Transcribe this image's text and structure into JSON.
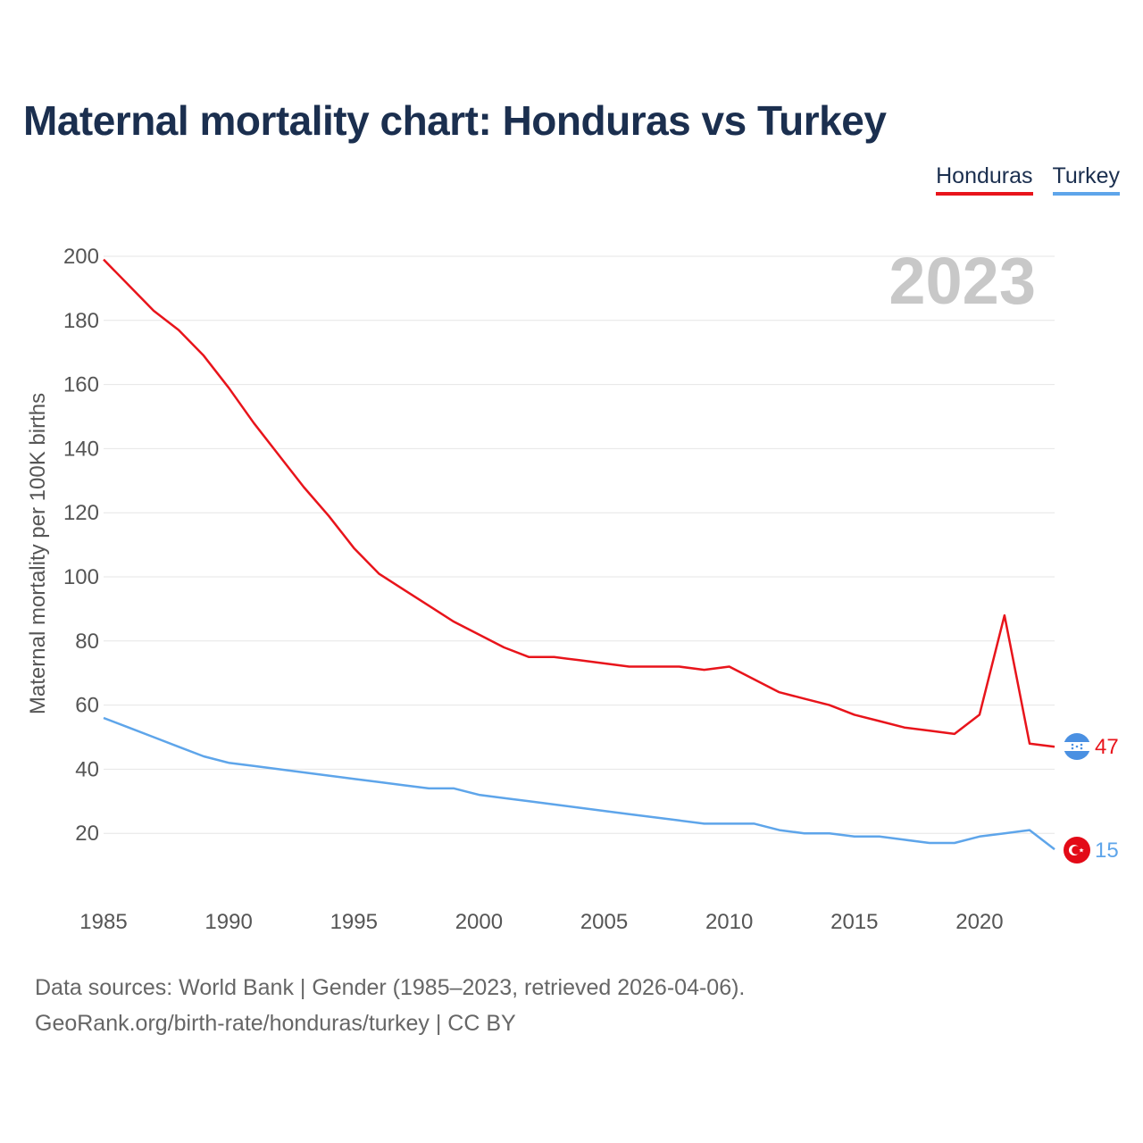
{
  "title": "Maternal mortality chart: Honduras vs Turkey",
  "legend": {
    "honduras": "Honduras",
    "turkey": "Turkey"
  },
  "footer": {
    "line1": "Data sources: World Bank | Gender (1985–2023, retrieved 2026-04-06).",
    "line2": "GeoRank.org/birth-rate/honduras/turkey | CC BY"
  },
  "colors": {
    "honduras": "#e8141b",
    "turkey": "#5ea5ea",
    "title": "#1b2f4f",
    "grid": "#e6e6e6",
    "year_watermark": "#c8c8c8"
  },
  "chart_data": {
    "type": "line",
    "title": "Maternal mortality chart: Honduras vs Turkey",
    "xlabel": "",
    "ylabel": "Maternal mortality per 100K births",
    "xlim": [
      1985,
      2023
    ],
    "ylim": [
      0,
      200
    ],
    "xticks": [
      1985,
      1990,
      1995,
      2000,
      2005,
      2010,
      2015,
      2020
    ],
    "yticks": [
      20,
      40,
      60,
      80,
      100,
      120,
      140,
      160,
      180,
      200
    ],
    "grid": true,
    "legend_position": "top-right",
    "year_label": "2023",
    "x": [
      1985,
      1986,
      1987,
      1988,
      1989,
      1990,
      1991,
      1992,
      1993,
      1994,
      1995,
      1996,
      1997,
      1998,
      1999,
      2000,
      2001,
      2002,
      2003,
      2004,
      2005,
      2006,
      2007,
      2008,
      2009,
      2010,
      2011,
      2012,
      2013,
      2014,
      2015,
      2016,
      2017,
      2018,
      2019,
      2020,
      2021,
      2022,
      2023
    ],
    "series": [
      {
        "name": "Honduras",
        "color": "#e8141b",
        "end_label": "47",
        "flag": "honduras-flag-icon",
        "values": [
          199,
          191,
          183,
          177,
          169,
          159,
          148,
          138,
          128,
          119,
          109,
          101,
          96,
          91,
          86,
          82,
          78,
          75,
          75,
          74,
          73,
          72,
          72,
          72,
          71,
          72,
          68,
          64,
          62,
          60,
          57,
          55,
          53,
          52,
          51,
          57,
          88,
          48,
          47
        ]
      },
      {
        "name": "Turkey",
        "color": "#5ea5ea",
        "end_label": "15",
        "flag": "turkey-flag-icon",
        "values": [
          56,
          53,
          50,
          47,
          44,
          42,
          41,
          40,
          39,
          38,
          37,
          36,
          35,
          34,
          34,
          32,
          31,
          30,
          29,
          28,
          27,
          26,
          25,
          24,
          23,
          23,
          23,
          21,
          20,
          20,
          19,
          19,
          18,
          17,
          17,
          19,
          20,
          21,
          15
        ]
      }
    ]
  }
}
